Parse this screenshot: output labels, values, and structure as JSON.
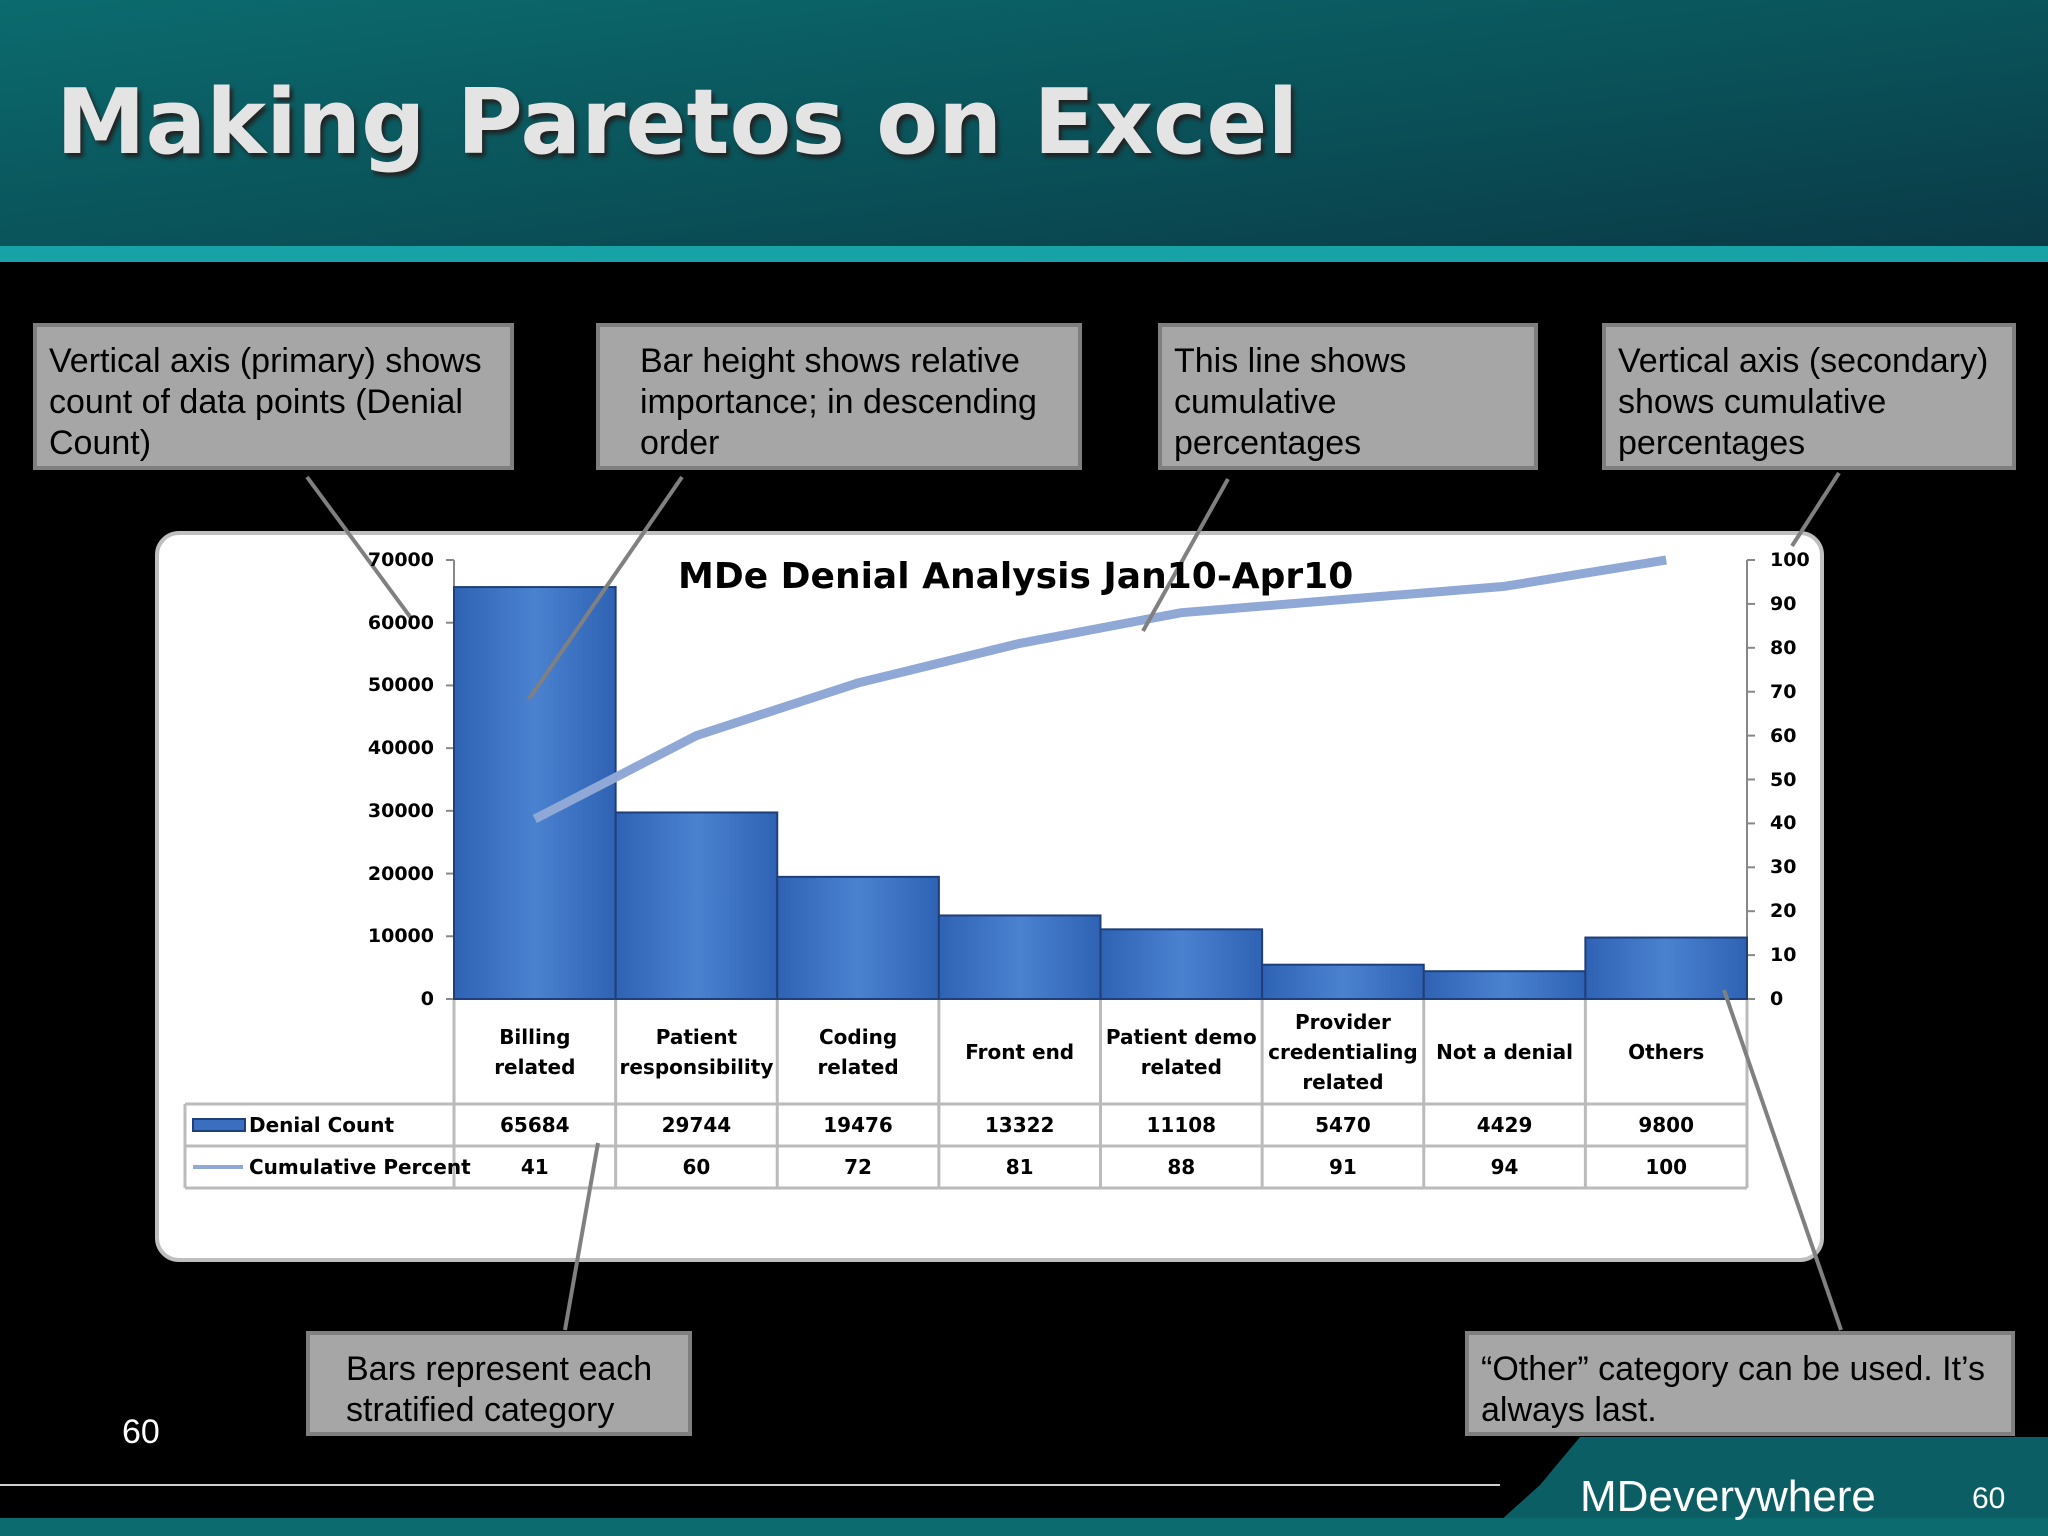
{
  "slide": {
    "title": "Making Paretos on Excel",
    "page_number_left": "60",
    "page_number_right": "60",
    "brand": "MDeverywhere"
  },
  "callouts": [
    "Vertical axis (primary) shows count of data points (Denial Count)",
    "Bar height shows relative importance; in descending order",
    "This line shows cumulative percentages",
    "Vertical axis (secondary) shows cumulative percentages",
    "Bars represent each stratified category",
    "“Other” category can be used.  It’s always last."
  ],
  "chart_data": {
    "type": "bar",
    "title": "MDe Denial Analysis Jan10-Apr10",
    "categories": [
      "Billing related",
      "Patient responsibility",
      "Coding related",
      "Front end",
      "Patient demo related",
      "Provider credentialing related",
      "Not a denial",
      "Others"
    ],
    "series": [
      {
        "name": "Denial Count",
        "color": "#3a6fc0",
        "values": [
          65684,
          29744,
          19476,
          13322,
          11108,
          5470,
          4429,
          9800
        ]
      },
      {
        "name": "Cumulative Percent",
        "color": "#8fa8d6",
        "axis": "y2",
        "values": [
          41,
          60,
          72,
          81,
          88,
          91,
          94,
          100
        ]
      }
    ],
    "ylim": [
      0,
      70000
    ],
    "yticks": [
      0,
      10000,
      20000,
      30000,
      40000,
      50000,
      60000,
      70000
    ],
    "y2lim": [
      0,
      100
    ],
    "y2ticks": [
      0,
      10,
      20,
      30,
      40,
      50,
      60,
      70,
      80,
      90,
      100
    ]
  }
}
